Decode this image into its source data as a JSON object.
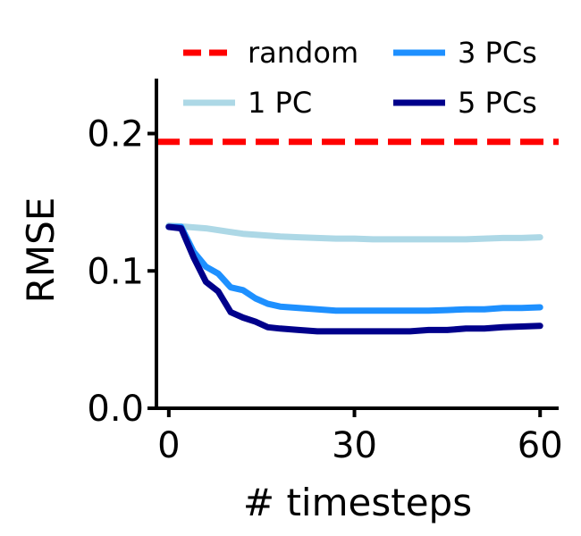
{
  "chart_data": {
    "type": "line",
    "title": "",
    "xlabel": "# timesteps",
    "ylabel": "RMSE",
    "xlim": [
      -2,
      63
    ],
    "ylim": [
      0.0,
      0.24
    ],
    "xticks": [
      0,
      30,
      60
    ],
    "xtick_labels": [
      "0",
      "30",
      "60"
    ],
    "yticks": [
      0.0,
      0.1,
      0.2
    ],
    "ytick_labels": [
      "0.0",
      "0.1",
      "0.2"
    ],
    "grid": false,
    "legend_position": "top",
    "series": [
      {
        "name": "random",
        "color": "#ff0000",
        "style": "dashed",
        "x": [
          -2,
          63
        ],
        "y": [
          0.194,
          0.194
        ]
      },
      {
        "name": "1 PC",
        "color": "#add8e6",
        "style": "solid",
        "x": [
          0,
          3,
          6,
          9,
          12,
          15,
          18,
          21,
          24,
          27,
          30,
          33,
          36,
          39,
          42,
          45,
          48,
          51,
          54,
          57,
          60
        ],
        "y": [
          0.133,
          0.132,
          0.131,
          0.129,
          0.127,
          0.126,
          0.125,
          0.1245,
          0.124,
          0.1235,
          0.1235,
          0.123,
          0.123,
          0.123,
          0.123,
          0.123,
          0.123,
          0.1235,
          0.124,
          0.124,
          0.1245
        ]
      },
      {
        "name": "3 PCs",
        "color": "#1e90ff",
        "style": "solid",
        "x": [
          0,
          2,
          4,
          6,
          8,
          10,
          12,
          14,
          16,
          18,
          21,
          24,
          27,
          30,
          33,
          36,
          39,
          42,
          45,
          48,
          51,
          54,
          57,
          60
        ],
        "y": [
          0.132,
          0.132,
          0.114,
          0.103,
          0.098,
          0.088,
          0.086,
          0.08,
          0.076,
          0.074,
          0.073,
          0.072,
          0.071,
          0.071,
          0.071,
          0.071,
          0.071,
          0.071,
          0.0715,
          0.072,
          0.072,
          0.073,
          0.073,
          0.0735
        ]
      },
      {
        "name": "5 PCs",
        "color": "#00008b",
        "style": "solid",
        "x": [
          0,
          2,
          4,
          6,
          8,
          10,
          12,
          14,
          16,
          18,
          21,
          24,
          27,
          30,
          33,
          36,
          39,
          42,
          45,
          48,
          51,
          54,
          57,
          60
        ],
        "y": [
          0.132,
          0.131,
          0.11,
          0.092,
          0.085,
          0.07,
          0.066,
          0.063,
          0.059,
          0.058,
          0.057,
          0.056,
          0.056,
          0.056,
          0.056,
          0.056,
          0.056,
          0.057,
          0.057,
          0.058,
          0.058,
          0.059,
          0.0595,
          0.06
        ]
      }
    ]
  }
}
